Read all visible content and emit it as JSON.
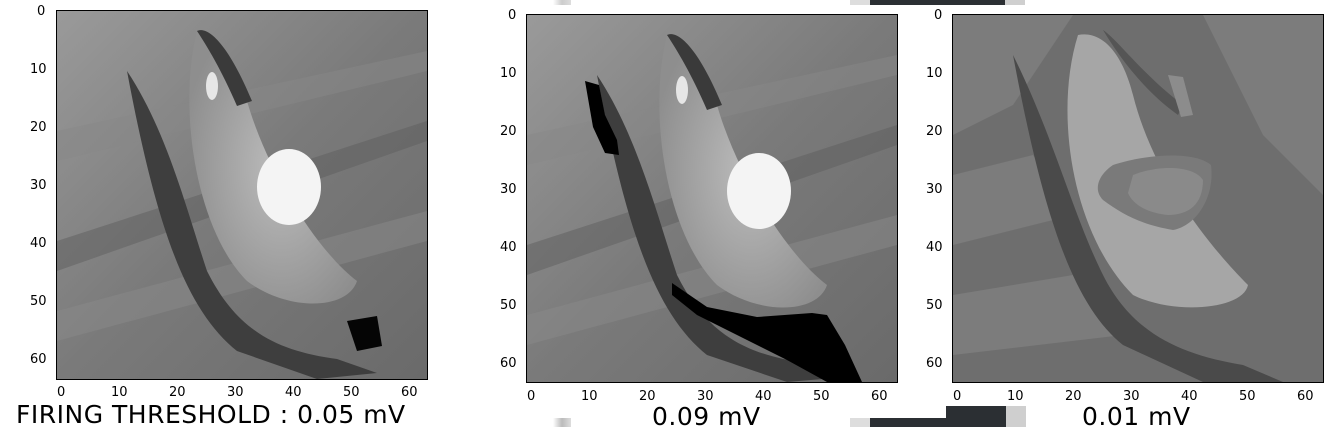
{
  "captions": {
    "left": "FIRING THRESHOLD : 0.05 mV",
    "middle": "0.09 mV",
    "right": "0.01 mV"
  },
  "axes": {
    "x_ticks": [
      "0",
      "10",
      "20",
      "30",
      "40",
      "50",
      "60"
    ],
    "y_ticks": [
      "0",
      "10",
      "20",
      "30",
      "40",
      "50",
      "60"
    ]
  },
  "panels": [
    {
      "threshold_mv": 0.05,
      "style": "grayscale"
    },
    {
      "threshold_mv": 0.09,
      "style": "grayscale with black regions"
    },
    {
      "threshold_mv": 0.01,
      "style": "posterized"
    }
  ]
}
